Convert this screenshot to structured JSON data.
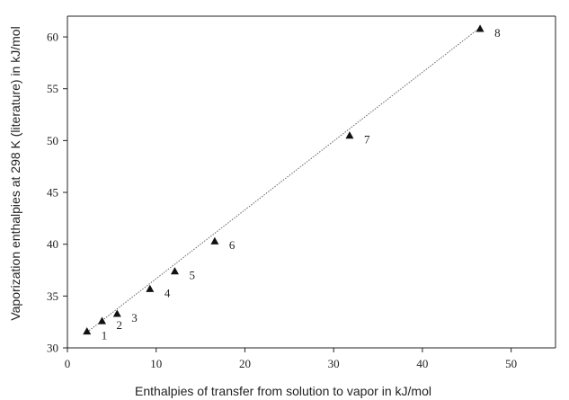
{
  "chart_data": {
    "type": "scatter",
    "title": "",
    "xlabel": "Enthalpies of transfer from solution to vapor in kJ/mol",
    "ylabel": "Vaporization enthalpies at 298 K (literature) in kJ/mol",
    "xlim": [
      0,
      55
    ],
    "ylim": [
      30,
      62
    ],
    "x_ticks": [
      "0",
      "10",
      "20",
      "30",
      "40",
      "50"
    ],
    "y_ticks": [
      "30",
      "35",
      "40",
      "45",
      "50",
      "55",
      "60"
    ],
    "grid": false,
    "legend": "none",
    "trendline": {
      "style": "dotted",
      "x": [
        2.2,
        46.5
      ],
      "y": [
        31.5,
        60.9
      ]
    },
    "points": [
      {
        "label": "1",
        "x": 2.2,
        "y": 31.6
      },
      {
        "label": "2",
        "x": 3.9,
        "y": 32.6
      },
      {
        "label": "3",
        "x": 5.6,
        "y": 33.3
      },
      {
        "label": "4",
        "x": 9.3,
        "y": 35.7
      },
      {
        "label": "5",
        "x": 12.1,
        "y": 37.4
      },
      {
        "label": "6",
        "x": 16.6,
        "y": 40.3
      },
      {
        "label": "7",
        "x": 31.8,
        "y": 50.5
      },
      {
        "label": "8",
        "x": 46.5,
        "y": 60.8
      }
    ]
  }
}
